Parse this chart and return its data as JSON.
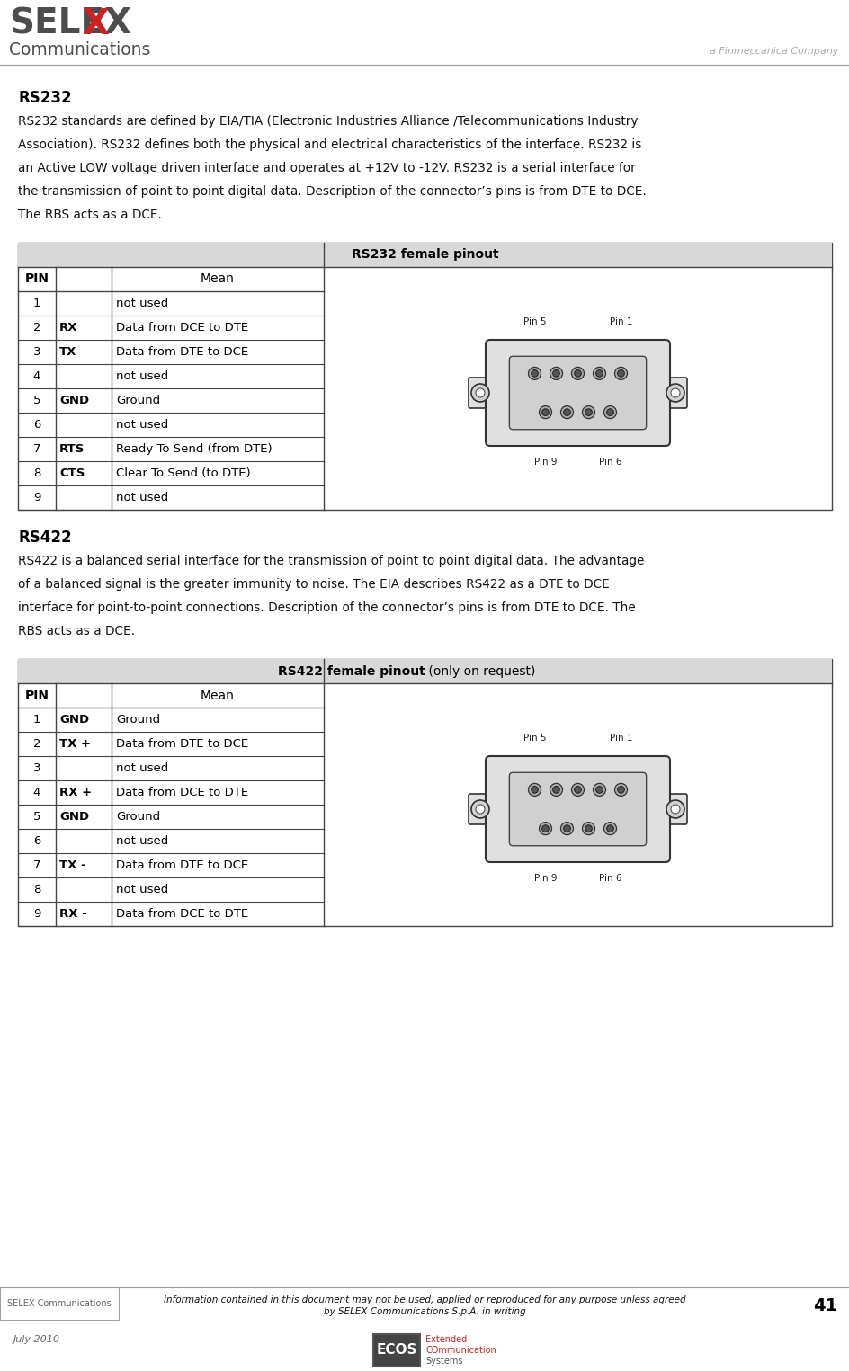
{
  "bg_color": "#ffffff",
  "header_line_color": "#999999",
  "selex_text_color": "#4d4d4d",
  "selex_x_color": "#cc2222",
  "finmeccanica_color": "#aaaaaa",
  "body_color": "#111111",
  "table_border_color": "#444444",
  "footer_border_color": "#999999",
  "footer_text_color": "#666666",
  "rs232_title": "RS232",
  "rs232_body_lines": [
    "RS232 standards are defined by EIA/TIA (Electronic Industries Alliance /Telecommunications Industry",
    "Association). RS232 defines both the physical and electrical characteristics of the interface. RS232 is",
    "an Active LOW voltage driven interface and operates at +12V to -12V. RS232 is a serial interface for",
    "the transmission of point to point digital data. Description of the connector’s pins is from DTE to DCE.",
    "The RBS acts as a DCE."
  ],
  "rs232_table_title": "RS232 female pinout",
  "rs232_table_rows": [
    [
      "1",
      "",
      "not used"
    ],
    [
      "2",
      "RX",
      "Data from DCE to DTE"
    ],
    [
      "3",
      "TX",
      "Data from DTE to DCE"
    ],
    [
      "4",
      "",
      "not used"
    ],
    [
      "5",
      "GND",
      "Ground"
    ],
    [
      "6",
      "",
      "not used"
    ],
    [
      "7",
      "RTS",
      "Ready To Send (from DTE)"
    ],
    [
      "8",
      "CTS",
      "Clear To Send (to DTE)"
    ],
    [
      "9",
      "",
      "not used"
    ]
  ],
  "rs422_title": "RS422",
  "rs422_body_lines": [
    "RS422 is a balanced serial interface for the transmission of point to point digital data. The advantage",
    "of a balanced signal is the greater immunity to noise. The EIA describes RS422 as a DTE to DCE",
    "interface for point-to-point connections. Description of the connector’s pins is from DTE to DCE. The",
    "RBS acts as a DCE."
  ],
  "rs422_table_title_bold": "RS422 female pinout",
  "rs422_table_title_normal": " (only on request)",
  "rs422_table_rows": [
    [
      "1",
      "GND",
      "Ground"
    ],
    [
      "2",
      "TX +",
      "Data from DTE to DCE"
    ],
    [
      "3",
      "",
      "not used"
    ],
    [
      "4",
      "RX +",
      "Data from DCE to DTE"
    ],
    [
      "5",
      "GND",
      "Ground"
    ],
    [
      "6",
      "",
      "not used"
    ],
    [
      "7",
      "TX -",
      "Data from DTE to DCE"
    ],
    [
      "8",
      "",
      "not used"
    ],
    [
      "9",
      "RX -",
      "Data from DCE to DTE"
    ]
  ],
  "footer_left": "SELEX Communications",
  "footer_center_line1": "Information contained in this document may not be used, applied or reproduced for any purpose unless agreed",
  "footer_center_line2": "by SELEX Communications S.p.A. in writing",
  "footer_page": "41",
  "footer_date": "July 2010",
  "ecos_text1": "Extended",
  "ecos_text2": "COmmunication",
  "ecos_text3": "Systems"
}
